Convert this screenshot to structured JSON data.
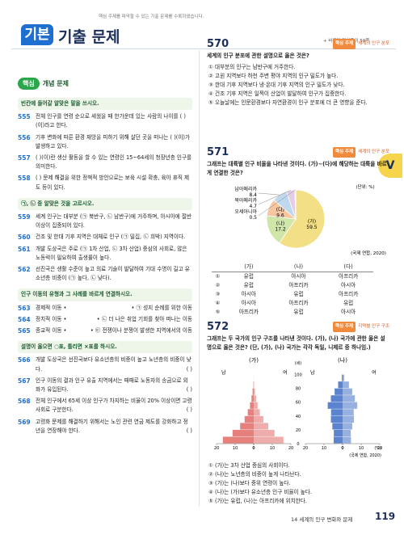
{
  "header": {
    "badge": "기본",
    "title": "기출 문제",
    "subtitle": "핵심 주제를 파악할 수 있는 기출 문제를 수록하였습니다.",
    "answer_ref": "+ 바른답·알찬풀이 59쪽"
  },
  "side_tab": "V",
  "left": {
    "tab": "핵심",
    "tab_title": "개념 문제",
    "sections": [
      {
        "instruction": "빈칸에 들어갈 알맞은 말을 쓰시오.",
        "items": [
          {
            "number": "555",
            "text": "전체 인구를 연령 순으로 세웠을 때 한가운데 있는 사람의 나이를 (          )(이)라고 한다."
          },
          {
            "number": "556",
            "text": "기후 변화에 따른 환경 재앙을 피하기 위해 살던 곳을 떠나는 (          )(이)가 발생하고 있다."
          },
          {
            "number": "557",
            "text": "(          )(이)란 생산 활동을 할 수 있는 연령인 15~64세의 청장년층 인구를 의미한다."
          },
          {
            "number": "558",
            "text": "(          ) 문제 해결을 위한 정책적 방안으로는 보육 시설 확충, 육아 휴직 제도 등이 있다."
          }
        ]
      },
      {
        "instruction": "㉠, ㉡ 중 알맞은 것을 고르시오.",
        "items": [
          {
            "number": "559",
            "text": "세계 인구는 대부분 (㉠ 북반구, ㉡ 남반구)에 거주하며, 아시아에 절반 이상이 집중되어 있다."
          },
          {
            "number": "560",
            "text": "건조 및 한대 기후 지역은 대체로 인구 (㉠ 밀집, ㉡ 희박) 지역이다."
          },
          {
            "number": "561",
            "text": "개발 도상국은 주로 (㉠ 1차 산업, ㉡ 3차 산업) 중심의 사회로, 많은 노동력이 필요하여 출생률이 높다."
          },
          {
            "number": "562",
            "text": "선진국은 생활 수준이 높고 의료 기술이 발달하여 기대 수명이 길고 유소년층 비중이 (㉠ 높다, ㉡ 낮다)."
          }
        ]
      },
      {
        "instruction": "인구 이동의 유형과 그 사례를 바르게 연결하시오.",
        "items": [
          {
            "number": "563",
            "left": "경제적 이동 •",
            "right": "• ㉠ 성지 순례를 위한 이동"
          },
          {
            "number": "564",
            "left": "정치적 이동 •",
            "right": "• ㉡ 더 나은 취업 기회를 찾아 떠나는 이동"
          },
          {
            "number": "565",
            "left": "종교적 이동 •",
            "right": "• ㉢ 전쟁이나 분쟁이 발생한 지역에서의 이동"
          }
        ]
      },
      {
        "instruction": "설명이 옳으면 ○표, 틀리면 ×표를 하시오.",
        "items": [
          {
            "number": "566",
            "text": "개발 도상국은 선진국보다 유소년층의 비중이 높고 노년층의 비중이 낮다.",
            "blank": "(      )"
          },
          {
            "number": "567",
            "text": "인구 이동의 결과 인구 유출 지역에서는 때때로 노동자의 송금으로 외화가 유입된다.",
            "blank": "(      )"
          },
          {
            "number": "568",
            "text": "전체 인구에서 65세 이상 인구가 차지하는 비율이 20% 이상이면 고령 사회로 구분한다.",
            "blank": "(      )"
          },
          {
            "number": "569",
            "text": "고령화 문제를 해결하기 위해서는 노인 관련 연금 제도를 강화하고 정년을 연장해야 한다.",
            "blank": "(      )"
          }
        ]
      }
    ]
  },
  "q570": {
    "number": "570",
    "tag": "핵심 주제",
    "topic": "세계의 인구 분포",
    "stem": "세계의 인구 분포에 관한 설명으로 옳은 것은?",
    "options": [
      "① 대부분의 인구는 남반구에 거주한다.",
      "② 고원 지역보다 하천 주변 평야 지역의 인구 밀도가 높다.",
      "③ 한대 기후 지역보다 냉·온대 기후 지역의 인구 밀도가 낮다.",
      "④ 건조 기후 지역은 일찍이 산업이 발달하여 인구가 집중한다.",
      "⑤ 오늘날에는 인문환경보다 자연환경이 인구 분포에 더 큰 영향을 준다."
    ]
  },
  "q571": {
    "number": "571",
    "tag": "핵심 주제",
    "topic": "세계의 인구 분포",
    "stem": "그래프는 대륙별 인구 비율을 나타낸 것이다. (가)~(다)에 해당하는 대륙을 바르게 연결한 것은?",
    "chart": {
      "type": "pie",
      "unit": "(단위: %)",
      "source": "(국제 연합, 2020)",
      "categories": [
        "(가)",
        "(나)",
        "(다)",
        "남아메리카",
        "북아메리카",
        "오세아니아"
      ],
      "values": [
        59.5,
        17.2,
        9.6,
        8.4,
        4.7,
        0.5
      ],
      "colors": [
        "#f2df86",
        "#cfe6a8",
        "#f6c6a0",
        "#bfd8ee",
        "#e6cde6",
        "#d6d6d6"
      ]
    },
    "table": {
      "header": [
        "(가)",
        "(나)",
        "(다)"
      ],
      "rows": [
        [
          "①",
          "유럽",
          "아시아",
          "아프리카"
        ],
        [
          "②",
          "유럽",
          "아프리카",
          "아시아"
        ],
        [
          "③",
          "아시아",
          "유럽",
          "아프리카"
        ],
        [
          "④",
          "아시아",
          "아프리카",
          "유럽"
        ],
        [
          "⑤",
          "아프리카",
          "유럽",
          "아시아"
        ]
      ]
    }
  },
  "q572": {
    "number": "572",
    "tag": "핵심 주제",
    "topic": "지역별 인구 구조",
    "stem": "그래프는 두 국가의 인구 구조를 나타낸 것이다. (가), (나) 국가에 관한 옳은 설명으로 옳은 것은? (단, (가), (나) 국가는 각각 독일, 니제르 중 하나임.)",
    "chart": {
      "type": "population-pyramid",
      "source": "(국제 연합, 2020)",
      "age_unit": "(세)",
      "pct_unit": "(%)",
      "male_label": "남",
      "female_label": "여",
      "ylim": [
        0,
        110
      ],
      "yticks": [
        0,
        20,
        40,
        60,
        80,
        100
      ],
      "xlim": [
        0,
        20
      ],
      "xticks": [
        0,
        10,
        20
      ],
      "series": [
        {
          "name": "(가)",
          "color": "#e06a66",
          "male": [
            16.6,
            11.4,
            7.3,
            4.9,
            3.2,
            2.0,
            1.2,
            0.6,
            0.15,
            0.02,
            0
          ],
          "female": [
            16.0,
            11.2,
            7.8,
            5.2,
            3.3,
            2.1,
            1.3,
            0.7,
            0.2,
            0.03,
            0
          ]
        },
        {
          "name": "(나)",
          "color": "#3f6fc6",
          "male": [
            4.8,
            4.7,
            5.5,
            6.3,
            6.2,
            8.0,
            6.3,
            4.3,
            2.4,
            0.4,
            0
          ],
          "female": [
            4.5,
            4.4,
            5.2,
            6.1,
            6.0,
            7.9,
            6.6,
            5.2,
            3.4,
            0.9,
            0
          ]
        }
      ]
    },
    "options": [
      "① (가)는 3차 산업 중심의 사회이다.",
      "② (나)는 노년층의 비중이 높게 나타난다.",
      "③ (가)는 (나)보다 중위 연령이 높다.",
      "④ (나)는 (가)보다 유소년층 인구 비율이 높다.",
      "⑤ (가)는 유럽, (나)는 아프리카에 위치한다."
    ]
  },
  "footer": {
    "chapter": "14 세계의 인구 변화와 문제",
    "page": 119
  }
}
